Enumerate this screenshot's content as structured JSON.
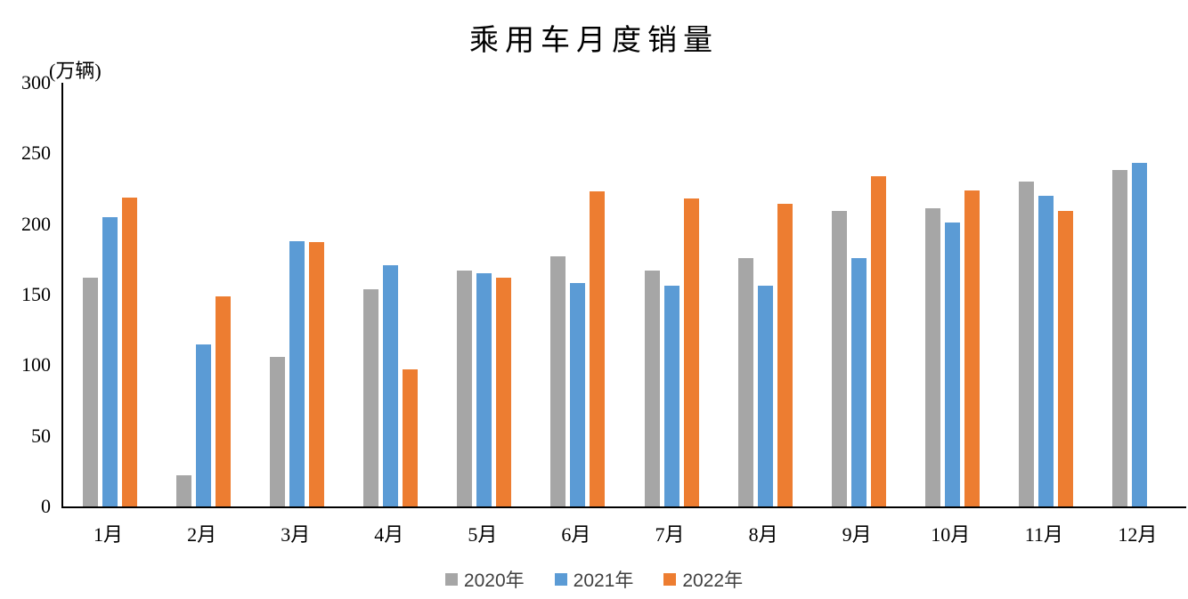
{
  "title": "乘用车月度销量",
  "unit_label": "(万辆)",
  "chart_data": {
    "type": "bar",
    "title": "乘用车月度销量",
    "ylabel": "(万辆)",
    "xlabel": "",
    "ylim": [
      0,
      300
    ],
    "ytick_interval": 50,
    "yticks": [
      "0",
      "50",
      "100",
      "150",
      "200",
      "250",
      "300"
    ],
    "grid": false,
    "legend_position": "bottom",
    "categories": [
      "1月",
      "2月",
      "3月",
      "4月",
      "5月",
      "6月",
      "7月",
      "8月",
      "9月",
      "10月",
      "11月",
      "12月"
    ],
    "series": [
      {
        "name": "2020年",
        "color": "#A6A6A6",
        "values": [
          162,
          22,
          106,
          154,
          167,
          177,
          167,
          176,
          209,
          211,
          230,
          238
        ]
      },
      {
        "name": "2021年",
        "color": "#5B9BD5",
        "values": [
          205,
          115,
          188,
          171,
          165,
          158,
          156,
          156,
          176,
          201,
          220,
          243
        ]
      },
      {
        "name": "2022年",
        "color": "#ED7D31",
        "values": [
          219,
          149,
          187,
          97,
          162,
          223,
          218,
          214,
          234,
          224,
          209,
          null
        ]
      }
    ]
  }
}
